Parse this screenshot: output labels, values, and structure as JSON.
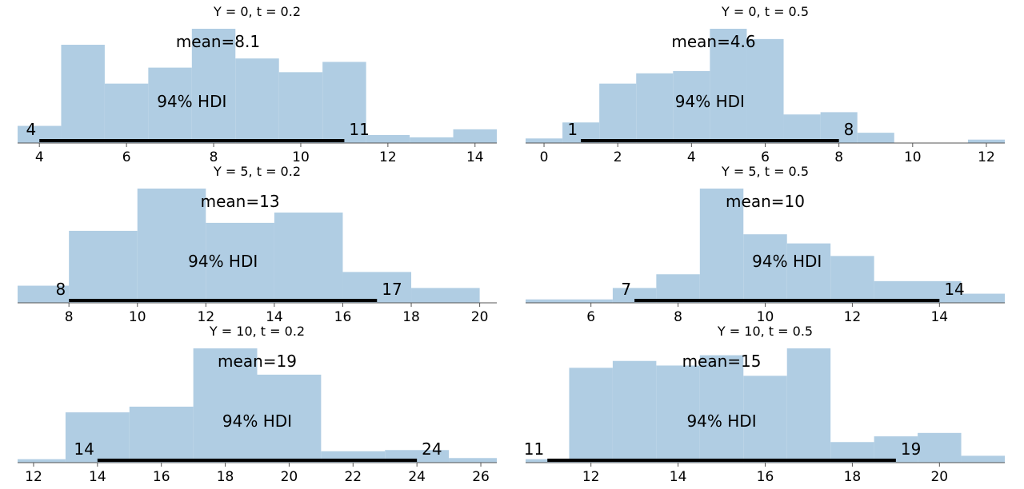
{
  "figure": {
    "title": ""
  },
  "colors": {
    "bar_fill": "#b0cde3",
    "hdi_line": "#000000",
    "axis": "#555555",
    "text": "#000000"
  },
  "chart_data": [
    {
      "type": "bar",
      "title": "Y = 0, t = 0.2",
      "xlabel": "",
      "ylabel": "",
      "xlim": [
        3.5,
        14.5
      ],
      "xticks": [
        4,
        6,
        8,
        10,
        12,
        14
      ],
      "bins": [
        {
          "x0": 3.5,
          "x1": 4.5,
          "height": 0.15
        },
        {
          "x0": 4.5,
          "x1": 5.5,
          "height": 0.86
        },
        {
          "x0": 5.5,
          "x1": 6.5,
          "height": 0.52
        },
        {
          "x0": 6.5,
          "x1": 7.5,
          "height": 0.66
        },
        {
          "x0": 7.5,
          "x1": 8.5,
          "height": 1.0
        },
        {
          "x0": 8.5,
          "x1": 9.5,
          "height": 0.74
        },
        {
          "x0": 9.5,
          "x1": 10.5,
          "height": 0.62
        },
        {
          "x0": 10.5,
          "x1": 11.5,
          "height": 0.71
        },
        {
          "x0": 11.5,
          "x1": 12.5,
          "height": 0.07
        },
        {
          "x0": 12.5,
          "x1": 13.5,
          "height": 0.05
        },
        {
          "x0": 13.5,
          "x1": 14.5,
          "height": 0.12
        }
      ],
      "mean_label": "mean=8.1",
      "mean_value": 8.1,
      "hdi_label": "94% HDI",
      "hdi_low": 4,
      "hdi_high": 11,
      "hdi_low_label": "4",
      "hdi_high_label": "11"
    },
    {
      "type": "bar",
      "title": "Y = 0, t = 0.5",
      "xlabel": "",
      "ylabel": "",
      "xlim": [
        -0.5,
        12.5
      ],
      "xticks": [
        0,
        2,
        4,
        6,
        8,
        10,
        12
      ],
      "bins": [
        {
          "x0": -0.5,
          "x1": 0.5,
          "height": 0.04
        },
        {
          "x0": 0.5,
          "x1": 1.5,
          "height": 0.18
        },
        {
          "x0": 1.5,
          "x1": 2.5,
          "height": 0.52
        },
        {
          "x0": 2.5,
          "x1": 3.5,
          "height": 0.61
        },
        {
          "x0": 3.5,
          "x1": 4.5,
          "height": 0.63
        },
        {
          "x0": 4.5,
          "x1": 5.5,
          "height": 1.0
        },
        {
          "x0": 5.5,
          "x1": 6.5,
          "height": 0.91
        },
        {
          "x0": 6.5,
          "x1": 7.5,
          "height": 0.25
        },
        {
          "x0": 7.5,
          "x1": 8.5,
          "height": 0.27
        },
        {
          "x0": 8.5,
          "x1": 9.5,
          "height": 0.09
        },
        {
          "x0": 9.5,
          "x1": 10.5,
          "height": 0.0
        },
        {
          "x0": 10.5,
          "x1": 11.5,
          "height": 0.0
        },
        {
          "x0": 11.5,
          "x1": 12.5,
          "height": 0.03
        }
      ],
      "mean_label": "mean=4.6",
      "mean_value": 4.6,
      "hdi_label": "94% HDI",
      "hdi_low": 1,
      "hdi_high": 8,
      "hdi_low_label": "1",
      "hdi_high_label": "8"
    },
    {
      "type": "bar",
      "title": "Y = 5, t = 0.2",
      "xlabel": "",
      "ylabel": "",
      "xlim": [
        6.5,
        20.5
      ],
      "xticks": [
        8,
        10,
        12,
        14,
        16,
        18,
        20
      ],
      "bins": [
        {
          "x0": 6.5,
          "x1": 8.0,
          "height": 0.15
        },
        {
          "x0": 8.0,
          "x1": 10.0,
          "height": 0.63
        },
        {
          "x0": 10.0,
          "x1": 12.0,
          "height": 1.0
        },
        {
          "x0": 12.0,
          "x1": 14.0,
          "height": 0.7
        },
        {
          "x0": 14.0,
          "x1": 16.0,
          "height": 0.79
        },
        {
          "x0": 16.0,
          "x1": 18.0,
          "height": 0.27
        },
        {
          "x0": 18.0,
          "x1": 20.0,
          "height": 0.13
        }
      ],
      "mean_label": "mean=13",
      "mean_value": 13,
      "hdi_label": "94% HDI",
      "hdi_low": 8,
      "hdi_high": 17,
      "hdi_low_label": "8",
      "hdi_high_label": "17"
    },
    {
      "type": "bar",
      "title": "Y = 5, t = 0.5",
      "xlabel": "",
      "ylabel": "",
      "xlim": [
        4.5,
        15.5
      ],
      "xticks": [
        6,
        8,
        10,
        12,
        14
      ],
      "bins": [
        {
          "x0": 4.5,
          "x1": 6.5,
          "height": 0.03
        },
        {
          "x0": 6.5,
          "x1": 7.5,
          "height": 0.13
        },
        {
          "x0": 7.5,
          "x1": 8.5,
          "height": 0.25
        },
        {
          "x0": 8.5,
          "x1": 9.5,
          "height": 1.0
        },
        {
          "x0": 9.5,
          "x1": 10.5,
          "height": 0.6
        },
        {
          "x0": 10.5,
          "x1": 11.5,
          "height": 0.52
        },
        {
          "x0": 11.5,
          "x1": 12.5,
          "height": 0.41
        },
        {
          "x0": 12.5,
          "x1": 14.5,
          "height": 0.19
        },
        {
          "x0": 14.5,
          "x1": 15.5,
          "height": 0.08
        }
      ],
      "mean_label": "mean=10",
      "mean_value": 10,
      "hdi_label": "94% HDI",
      "hdi_low": 7,
      "hdi_high": 14,
      "hdi_low_label": "7",
      "hdi_high_label": "14"
    },
    {
      "type": "bar",
      "title": "Y = 10, t = 0.2",
      "xlabel": "",
      "ylabel": "",
      "xlim": [
        11.5,
        26.5
      ],
      "xticks": [
        12,
        14,
        16,
        18,
        20,
        22,
        24,
        26
      ],
      "bins": [
        {
          "x0": 11.5,
          "x1": 13.0,
          "height": 0.03
        },
        {
          "x0": 13.0,
          "x1": 15.0,
          "height": 0.44
        },
        {
          "x0": 15.0,
          "x1": 17.0,
          "height": 0.49
        },
        {
          "x0": 17.0,
          "x1": 19.0,
          "height": 1.0
        },
        {
          "x0": 19.0,
          "x1": 21.0,
          "height": 0.77
        },
        {
          "x0": 21.0,
          "x1": 23.0,
          "height": 0.1
        },
        {
          "x0": 23.0,
          "x1": 25.0,
          "height": 0.11
        },
        {
          "x0": 25.0,
          "x1": 26.5,
          "height": 0.04
        }
      ],
      "mean_label": "mean=19",
      "mean_value": 19,
      "hdi_label": "94% HDI",
      "hdi_low": 14,
      "hdi_high": 24,
      "hdi_low_label": "14",
      "hdi_high_label": "24"
    },
    {
      "type": "bar",
      "title": "Y = 10, t = 0.5",
      "xlabel": "",
      "ylabel": "",
      "xlim": [
        10.5,
        21.5
      ],
      "xticks": [
        12,
        14,
        16,
        18,
        20
      ],
      "bins": [
        {
          "x0": 10.5,
          "x1": 11.5,
          "height": 0.03
        },
        {
          "x0": 11.5,
          "x1": 12.5,
          "height": 0.83
        },
        {
          "x0": 12.5,
          "x1": 13.5,
          "height": 0.89
        },
        {
          "x0": 13.5,
          "x1": 14.5,
          "height": 0.85
        },
        {
          "x0": 14.5,
          "x1": 15.5,
          "height": 0.94
        },
        {
          "x0": 15.5,
          "x1": 16.5,
          "height": 0.76
        },
        {
          "x0": 16.5,
          "x1": 17.5,
          "height": 1.0
        },
        {
          "x0": 17.5,
          "x1": 18.5,
          "height": 0.18
        },
        {
          "x0": 18.5,
          "x1": 19.5,
          "height": 0.23
        },
        {
          "x0": 19.5,
          "x1": 20.5,
          "height": 0.26
        },
        {
          "x0": 20.5,
          "x1": 21.5,
          "height": 0.06
        }
      ],
      "mean_label": "mean=15",
      "mean_value": 15,
      "hdi_label": "94% HDI",
      "hdi_low": 11,
      "hdi_high": 19,
      "hdi_low_label": "11",
      "hdi_high_label": "19"
    }
  ]
}
